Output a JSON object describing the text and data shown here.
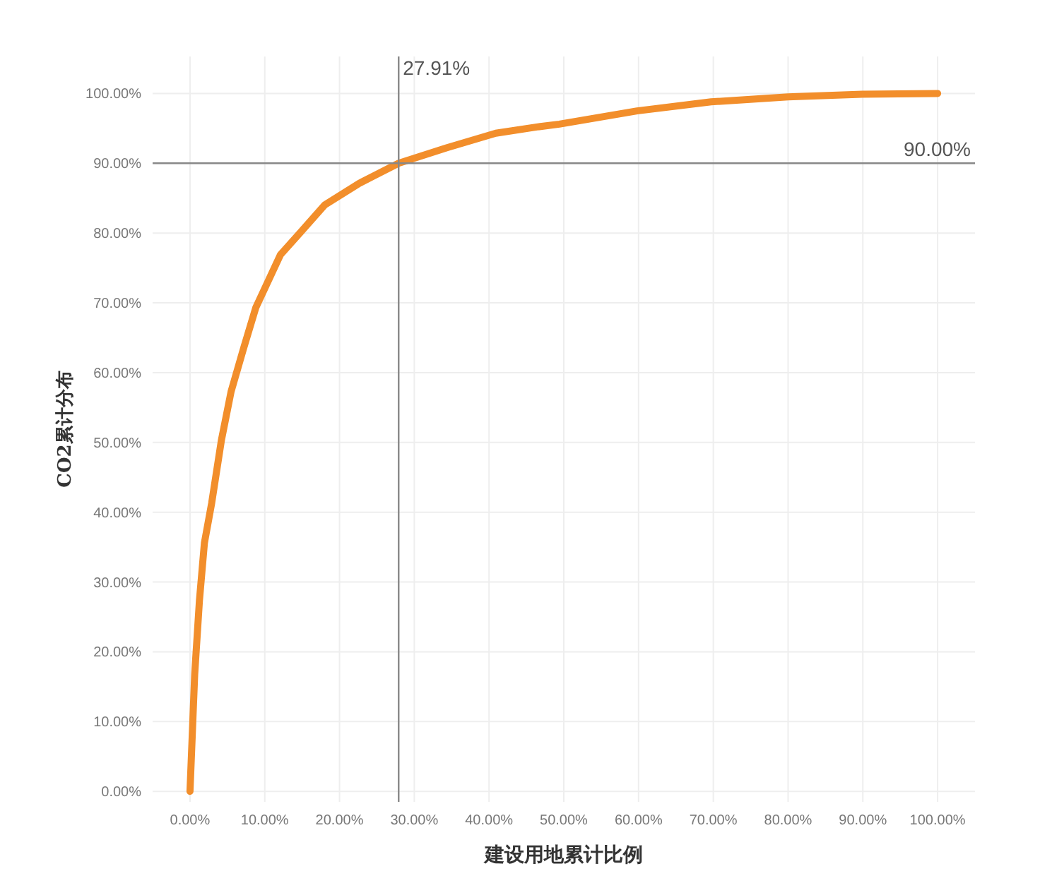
{
  "chart_data": {
    "type": "line",
    "xlabel": "建设用地累计比例",
    "ylabel": "CO2累计分布",
    "x": [
      0,
      0.63,
      1.26,
      1.93,
      2.9,
      4.2,
      5.5,
      7.2,
      8.8,
      12.1,
      14.7,
      18,
      22.6,
      27.91,
      34.3,
      40.9,
      46.4,
      49.4,
      59.8,
      69.7,
      80,
      89.9,
      100
    ],
    "series": [
      {
        "color": "#f28e2b",
        "values": [
          0,
          16.8,
          27.3,
          35.6,
          41.3,
          50.3,
          57.3,
          63.6,
          69.3,
          76.9,
          80,
          84,
          87.1,
          90,
          92.2,
          94.3,
          95.2,
          95.6,
          97.5,
          98.8,
          99.5,
          99.9,
          100
        ]
      }
    ],
    "xlim": [
      -5,
      105
    ],
    "ylim": [
      -1.5,
      105.3
    ],
    "xticks": [
      {
        "value": 0,
        "label": "0.00%"
      },
      {
        "value": 10,
        "label": "10.00%"
      },
      {
        "value": 20,
        "label": "20.00%"
      },
      {
        "value": 30,
        "label": "30.00%"
      },
      {
        "value": 40,
        "label": "40.00%"
      },
      {
        "value": 50,
        "label": "50.00%"
      },
      {
        "value": 60,
        "label": "60.00%"
      },
      {
        "value": 70,
        "label": "70.00%"
      },
      {
        "value": 80,
        "label": "80.00%"
      },
      {
        "value": 90,
        "label": "90.00%"
      },
      {
        "value": 100,
        "label": "100.00%"
      }
    ],
    "yticks": [
      {
        "value": 0,
        "label": "0.00%"
      },
      {
        "value": 10,
        "label": "10.00%"
      },
      {
        "value": 20,
        "label": "20.00%"
      },
      {
        "value": 30,
        "label": "30.00%"
      },
      {
        "value": 40,
        "label": "40.00%"
      },
      {
        "value": 50,
        "label": "50.00%"
      },
      {
        "value": 60,
        "label": "60.00%"
      },
      {
        "value": 70,
        "label": "70.00%"
      },
      {
        "value": 80,
        "label": "80.00%"
      },
      {
        "value": 90,
        "label": "90.00%"
      },
      {
        "value": 100,
        "label": "100.00%"
      }
    ],
    "grid": true,
    "line_style": "solid",
    "marker": "none",
    "ref_lines": [
      {
        "axis": "x",
        "value": 27.91,
        "label": "27.91%",
        "color": "#888888"
      },
      {
        "axis": "y",
        "value": 90,
        "label": "90.00%",
        "color": "#888888"
      }
    ]
  }
}
